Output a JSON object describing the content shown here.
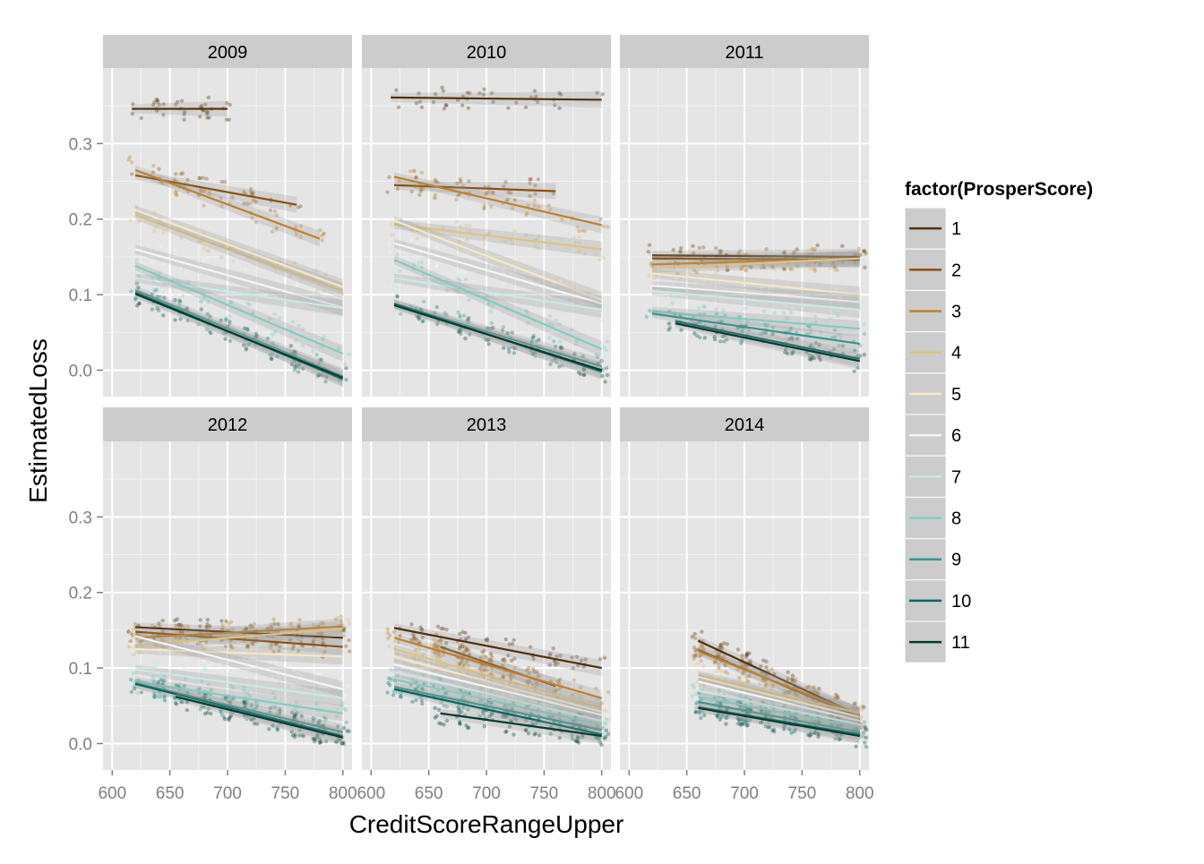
{
  "chart_data": {
    "type": "scatter",
    "xlabel": "CreditScoreRangeUpper",
    "ylabel": "EstimatedLoss",
    "xlim": [
      592,
      808
    ],
    "ylim": [
      -0.035,
      0.4
    ],
    "x_ticks": [
      600,
      650,
      700,
      750,
      800
    ],
    "x_tick_labels": [
      "600",
      "650",
      "700",
      "750",
      "800"
    ],
    "y_ticks": [
      0.0,
      0.1,
      0.2,
      0.3
    ],
    "y_tick_labels": [
      "0.0",
      "0.1",
      "0.2",
      "0.3"
    ],
    "facets": [
      "2009",
      "2010",
      "2011",
      "2012",
      "2013",
      "2014"
    ],
    "facet_layout": "2 rows x 3 columns",
    "legend": {
      "title": "factor(ProsperScore)",
      "position": "right",
      "labels": [
        "1",
        "2",
        "3",
        "4",
        "5",
        "6",
        "7",
        "8",
        "9",
        "10",
        "11"
      ],
      "colors": [
        "#543005",
        "#8c510a",
        "#bf812d",
        "#dfc27d",
        "#f6e8c3",
        "#f5f5f5",
        "#c7eae5",
        "#80cdc1",
        "#35978f",
        "#01665e",
        "#003c30"
      ]
    },
    "background": "#e5e5e5",
    "grid": true,
    "series": [
      {
        "name": "1",
        "points": [
          [
            2009,
            617,
            0.346,
            700,
            0.346
          ],
          [
            2010,
            617,
            0.361,
            800,
            0.358
          ],
          [
            2011,
            620,
            0.152,
            800,
            0.15
          ],
          [
            2012,
            620,
            0.154,
            800,
            0.14
          ],
          [
            2013,
            620,
            0.153,
            800,
            0.1
          ],
          [
            2014,
            660,
            0.136,
            800,
            0.037
          ]
        ]
      },
      {
        "name": "2",
        "points": [
          [
            2009,
            620,
            0.258,
            760,
            0.219
          ],
          [
            2010,
            620,
            0.245,
            760,
            0.237
          ],
          [
            2011,
            620,
            0.148,
            800,
            0.146
          ],
          [
            2012,
            620,
            0.148,
            800,
            0.128
          ],
          [
            2013,
            660,
            0.128,
            760,
            0.076
          ],
          [
            2014,
            660,
            0.124,
            800,
            0.035
          ]
        ]
      },
      {
        "name": "3",
        "points": [
          [
            2009,
            620,
            0.265,
            780,
            0.174
          ],
          [
            2010,
            620,
            0.256,
            800,
            0.192
          ],
          [
            2011,
            620,
            0.14,
            800,
            0.148
          ],
          [
            2012,
            620,
            0.14,
            800,
            0.155
          ],
          [
            2013,
            620,
            0.14,
            800,
            0.06
          ],
          [
            2014,
            660,
            0.122,
            800,
            0.038
          ]
        ]
      },
      {
        "name": "4",
        "points": [
          [
            2009,
            620,
            0.205,
            800,
            0.105
          ],
          [
            2010,
            620,
            0.193,
            800,
            0.16
          ],
          [
            2011,
            620,
            0.135,
            800,
            0.148
          ],
          [
            2012,
            620,
            0.13,
            800,
            0.152
          ],
          [
            2013,
            620,
            0.125,
            800,
            0.048
          ],
          [
            2014,
            660,
            0.09,
            800,
            0.04
          ]
        ]
      },
      {
        "name": "5",
        "points": [
          [
            2009,
            620,
            0.212,
            800,
            0.11
          ],
          [
            2010,
            620,
            0.198,
            800,
            0.093
          ],
          [
            2011,
            620,
            0.128,
            800,
            0.1
          ],
          [
            2012,
            620,
            0.125,
            800,
            0.115
          ],
          [
            2013,
            620,
            0.115,
            800,
            0.042
          ],
          [
            2014,
            660,
            0.088,
            800,
            0.035
          ]
        ]
      },
      {
        "name": "6",
        "points": [
          [
            2009,
            620,
            0.16,
            800,
            0.083
          ],
          [
            2010,
            620,
            0.168,
            800,
            0.088
          ],
          [
            2011,
            620,
            0.112,
            800,
            0.09
          ],
          [
            2012,
            620,
            0.142,
            800,
            0.072
          ],
          [
            2013,
            620,
            0.105,
            800,
            0.038
          ],
          [
            2014,
            660,
            0.082,
            800,
            0.03
          ]
        ]
      },
      {
        "name": "7",
        "points": [
          [
            2009,
            620,
            0.122,
            800,
            0.082
          ],
          [
            2010,
            620,
            0.122,
            800,
            0.08
          ],
          [
            2011,
            620,
            0.105,
            800,
            0.08
          ],
          [
            2012,
            620,
            0.098,
            800,
            0.06
          ],
          [
            2013,
            620,
            0.095,
            800,
            0.03
          ],
          [
            2014,
            660,
            0.07,
            800,
            0.025
          ]
        ]
      },
      {
        "name": "8",
        "points": [
          [
            2009,
            620,
            0.138,
            800,
            0.022
          ],
          [
            2010,
            620,
            0.146,
            800,
            0.028
          ],
          [
            2011,
            620,
            0.078,
            800,
            0.055
          ],
          [
            2012,
            620,
            0.082,
            800,
            0.04
          ],
          [
            2013,
            620,
            0.085,
            800,
            0.025
          ],
          [
            2014,
            660,
            0.062,
            800,
            0.022
          ]
        ]
      },
      {
        "name": "9",
        "points": [
          [
            2009,
            620,
            0.106,
            800,
            -0.008
          ],
          [
            2010,
            620,
            0.088,
            800,
            0.005
          ],
          [
            2011,
            620,
            0.075,
            800,
            0.035
          ],
          [
            2012,
            620,
            0.08,
            800,
            0.015
          ],
          [
            2013,
            620,
            0.075,
            800,
            0.018
          ],
          [
            2014,
            660,
            0.055,
            800,
            0.015
          ]
        ]
      },
      {
        "name": "10",
        "points": [
          [
            2009,
            620,
            0.103,
            800,
            -0.012
          ],
          [
            2010,
            620,
            0.088,
            800,
            -0.002
          ],
          [
            2011,
            640,
            0.065,
            800,
            0.015
          ],
          [
            2012,
            620,
            0.079,
            800,
            0.01
          ],
          [
            2013,
            620,
            0.072,
            800,
            0.012
          ],
          [
            2014,
            660,
            0.048,
            800,
            0.012
          ]
        ]
      },
      {
        "name": "11",
        "points": [
          [
            2009,
            620,
            0.101,
            800,
            -0.01
          ],
          [
            2010,
            620,
            0.086,
            800,
            0.0
          ],
          [
            2011,
            640,
            0.062,
            800,
            0.012
          ],
          [
            2012,
            655,
            0.062,
            800,
            0.008
          ],
          [
            2013,
            660,
            0.04,
            800,
            0.01
          ],
          [
            2014,
            660,
            0.047,
            800,
            0.01
          ]
        ]
      }
    ]
  }
}
